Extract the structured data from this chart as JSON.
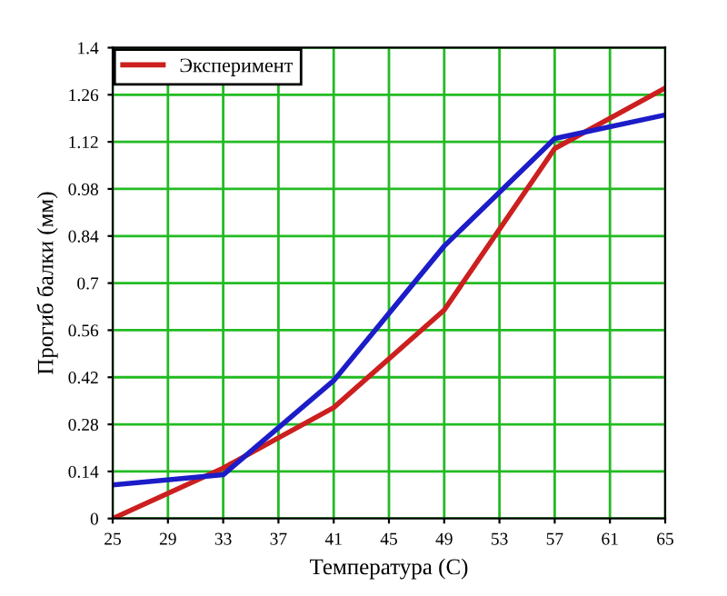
{
  "chart_data": {
    "type": "line",
    "xlabel": "Температура (С)",
    "ylabel": "Прогиб балки (мм)",
    "x": [
      25,
      33,
      41,
      49,
      57,
      65
    ],
    "series": [
      {
        "name": "Эксперимент",
        "color": "#cc1f1f",
        "values": [
          0,
          0.15,
          0.33,
          0.62,
          1.1,
          1.28
        ]
      },
      {
        "color": "#1c1cc8",
        "values": [
          0.1,
          0.13,
          0.41,
          0.81,
          1.13,
          1.2
        ]
      }
    ],
    "xlim": [
      25,
      65
    ],
    "xticks": [
      25,
      29,
      33,
      37,
      41,
      45,
      49,
      53,
      57,
      61,
      65
    ],
    "ylim": [
      0,
      1.4
    ],
    "yticks": [
      0,
      0.14,
      0.28,
      0.42,
      0.56,
      0.7,
      0.84,
      0.98,
      1.12,
      1.26,
      1.4
    ],
    "grid": true,
    "legend": "top left",
    "marker": "none",
    "line_style": "solid"
  }
}
